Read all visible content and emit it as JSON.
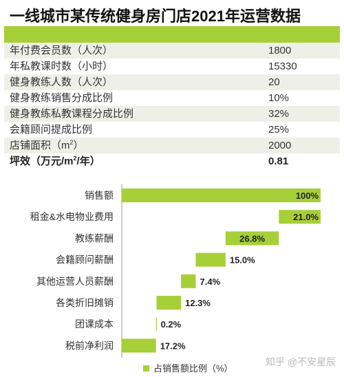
{
  "title": "一线城市某传统健身房门店2021年运营数据",
  "table": {
    "rows": [
      {
        "label": "年付费会员数（人次）",
        "value": "1800"
      },
      {
        "label": "年私教课时数（小时）",
        "value": "15330"
      },
      {
        "label": "健身教练人数（人次）",
        "value": "20"
      },
      {
        "label": "健身教练销售分成比例",
        "value": "10%"
      },
      {
        "label": "健身教练私教课程分成比例",
        "value": "32%"
      },
      {
        "label": "会籍顾问提成比例",
        "value": "25%"
      },
      {
        "label_prefix": "店铺面积（m",
        "label_sup": "2",
        "label_suffix": "）",
        "value": "2000"
      },
      {
        "label_prefix": "坪效（万元/m",
        "label_sup": "2",
        "label_suffix": "/年）",
        "value": "0.81"
      }
    ]
  },
  "chart_data": {
    "type": "bar",
    "subtype": "waterfall",
    "categories": [
      "销售额",
      "租金&水电物业费用",
      "教练薪酬",
      "会籍顾问薪酬",
      "其他运营人员薪酬",
      "各类折旧摊销",
      "团课成本",
      "税前净利润"
    ],
    "values": [
      100,
      21.0,
      26.8,
      15.0,
      7.4,
      12.3,
      0.2,
      17.2
    ],
    "labels": [
      "100%",
      "21.0%",
      "26.8%",
      "15.0%",
      "7.4%",
      "12.3%",
      "0.2%",
      "17.2%"
    ],
    "series": [
      {
        "name": "占销售额比例（%）",
        "values": [
          100,
          21.0,
          26.8,
          15.0,
          7.4,
          12.3,
          0.2,
          17.2
        ]
      }
    ],
    "xlim": [
      0,
      100
    ],
    "color": "#a6cf38",
    "legend": "bottom"
  },
  "legend_label": "占销售额比例（%）",
  "watermark": "知乎 @不安星辰"
}
